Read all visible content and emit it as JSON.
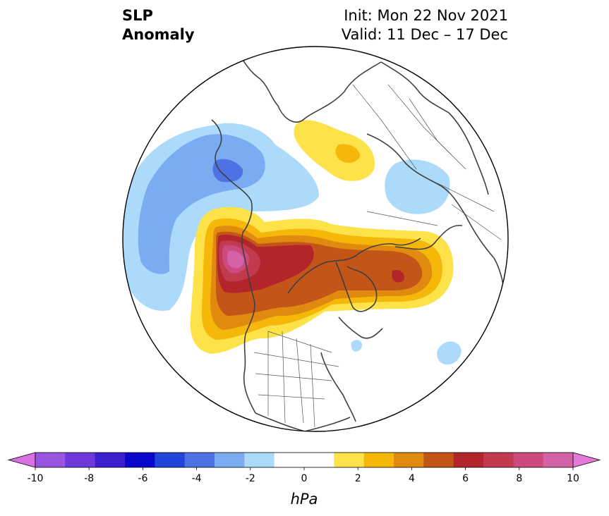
{
  "title": {
    "left_line1": "SLP",
    "left_line2": "Anomaly",
    "init": "Init: Mon 22 Nov 2021",
    "valid": "Valid: 11 Dec – 17 Dec"
  },
  "colorbar": {
    "unit": "hPa",
    "min": -10,
    "max": 10,
    "step": 1,
    "ticks": [
      -10,
      -8,
      -6,
      -4,
      -2,
      0,
      2,
      4,
      6,
      8,
      10
    ],
    "tick_labels": [
      "-10",
      "-8",
      "-6",
      "-4",
      "-2",
      "0",
      "2",
      "4",
      "6",
      "8",
      "10"
    ],
    "colors": [
      "#9a55e0",
      "#6f38da",
      "#3d1fd0",
      "#0a08cc",
      "#2244d8",
      "#4e72e4",
      "#7bacf2",
      "#acdafb",
      "#ffffff",
      "#ffffff",
      "#fee24a",
      "#f4b70a",
      "#e08a10",
      "#c45518",
      "#b2252a",
      "#c23a4e",
      "#cc4a7e",
      "#d462a6"
    ],
    "under_color": "#d870e4",
    "over_color": "#e47ad8"
  },
  "map": {
    "projection": "north-polar-stereographic",
    "features": [
      "coastlines",
      "country-borders",
      "us-state-borders"
    ]
  }
}
